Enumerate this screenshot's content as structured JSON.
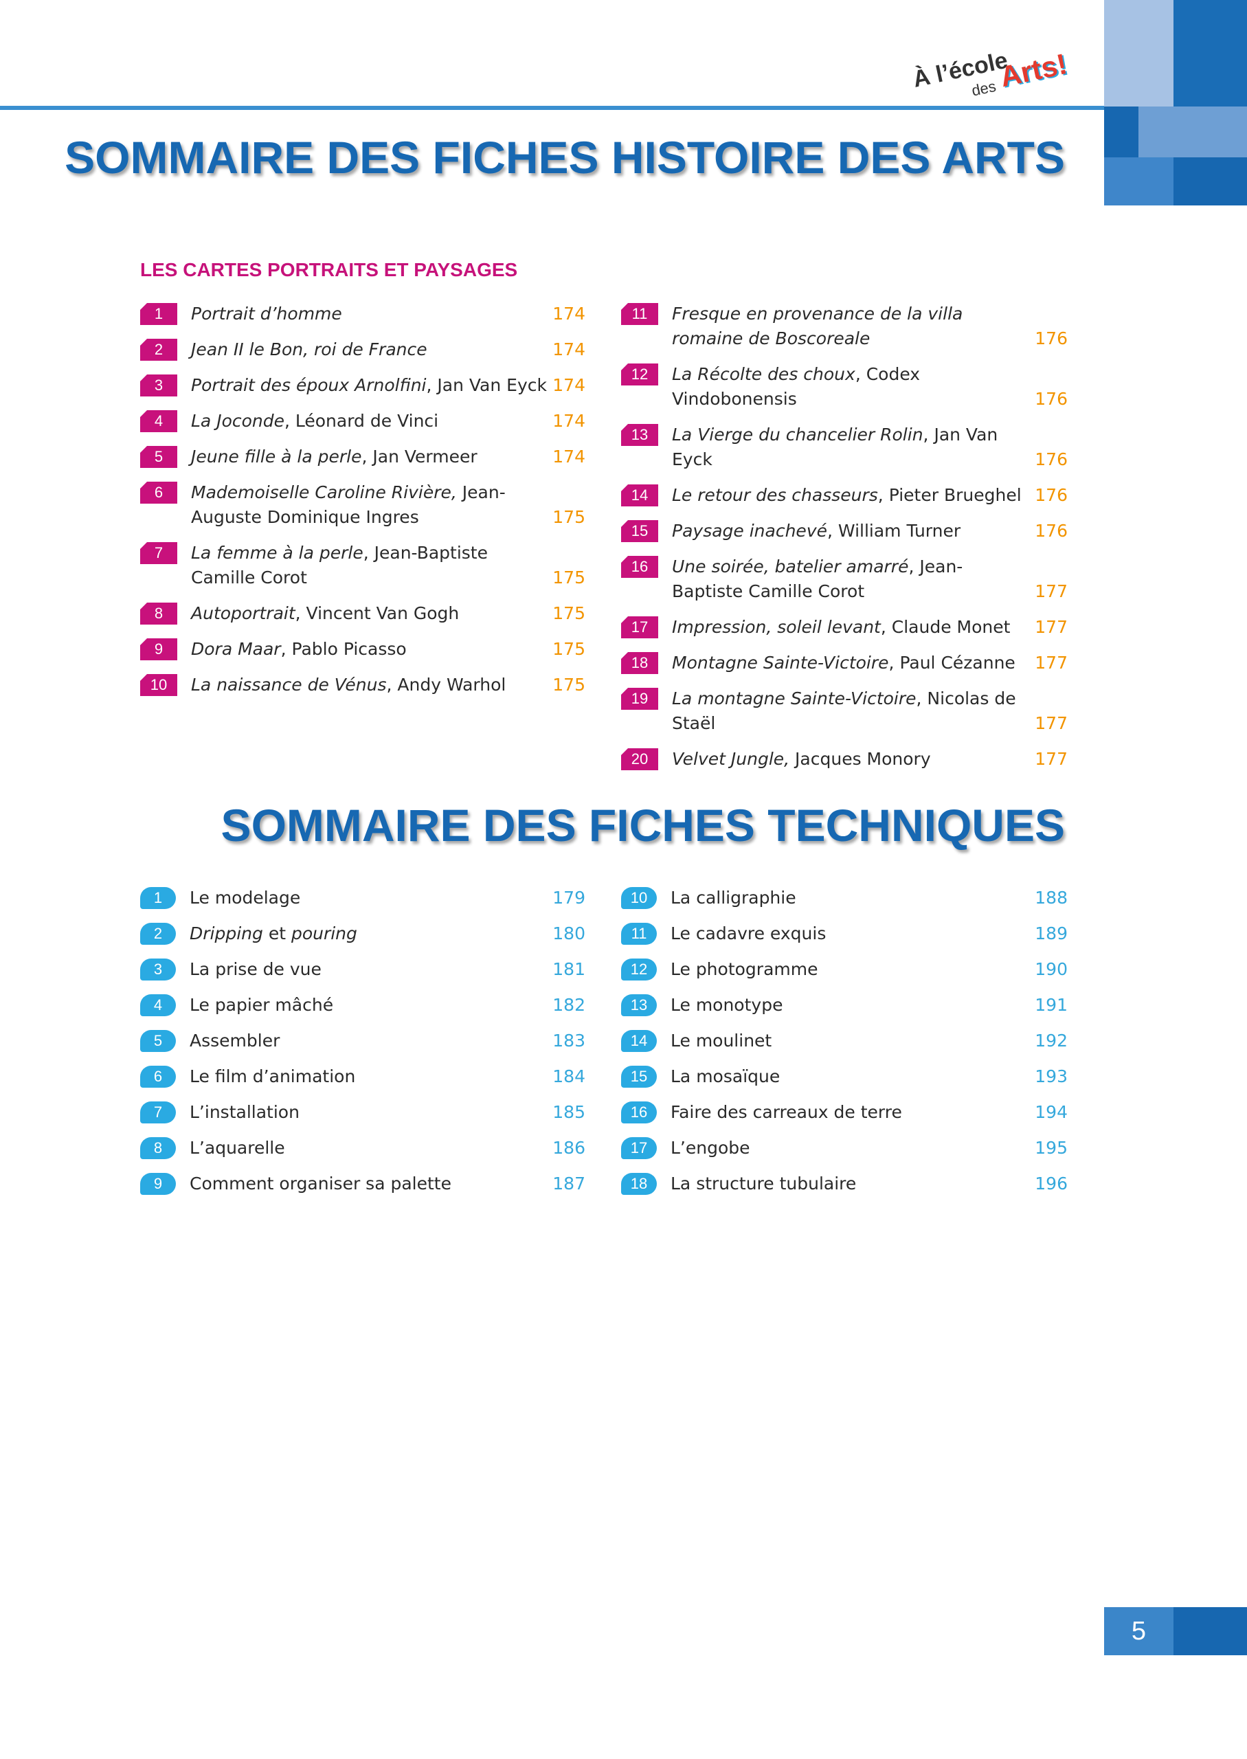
{
  "logo": {
    "line1": "À l’école",
    "line2": "des",
    "line3": "Arts!"
  },
  "sections": [
    {
      "title": "SOMMAIRE DES FICHES HISTOIRE DES ARTS",
      "subtitle": "LES CARTES PORTRAITS ET PAYSAGES",
      "columns": [
        [
          {
            "number": 1,
            "segments": [
              {
                "text": "Portrait d’homme",
                "italic": true
              }
            ],
            "page": 174
          },
          {
            "number": 2,
            "segments": [
              {
                "text": "Jean II le Bon, roi de France",
                "italic": true
              }
            ],
            "page": 174
          },
          {
            "number": 3,
            "segments": [
              {
                "text": "Portrait des époux Arnolfini",
                "italic": true
              },
              {
                "text": ", Jan Van Eyck",
                "italic": false
              }
            ],
            "page": 174
          },
          {
            "number": 4,
            "segments": [
              {
                "text": "La Joconde",
                "italic": true
              },
              {
                "text": ", Léonard de Vinci",
                "italic": false
              }
            ],
            "page": 174
          },
          {
            "number": 5,
            "segments": [
              {
                "text": "Jeune fille à la perle",
                "italic": true
              },
              {
                "text": ", Jan Vermeer",
                "italic": false
              }
            ],
            "page": 174
          },
          {
            "number": 6,
            "segments": [
              {
                "text": "Mademoiselle Caroline Rivière,",
                "italic": true
              },
              {
                "text": " Jean-Auguste Dominique Ingres",
                "italic": false
              }
            ],
            "page": 175
          },
          {
            "number": 7,
            "segments": [
              {
                "text": "La femme à la perle",
                "italic": true
              },
              {
                "text": ", Jean-Baptiste Camille Corot",
                "italic": false
              }
            ],
            "page": 175
          },
          {
            "number": 8,
            "segments": [
              {
                "text": "Autoportrait",
                "italic": true
              },
              {
                "text": ", Vincent Van Gogh",
                "italic": false
              }
            ],
            "page": 175
          },
          {
            "number": 9,
            "segments": [
              {
                "text": "Dora Maar",
                "italic": true
              },
              {
                "text": ", Pablo Picasso",
                "italic": false
              }
            ],
            "page": 175
          },
          {
            "number": 10,
            "segments": [
              {
                "text": "La naissance de Vénus",
                "italic": true
              },
              {
                "text": ", Andy Warhol",
                "italic": false
              }
            ],
            "page": 175
          }
        ],
        [
          {
            "number": 11,
            "segments": [
              {
                "text": "Fresque en provenance de la villa romaine de Boscoreale",
                "italic": true
              }
            ],
            "page": 176
          },
          {
            "number": 12,
            "segments": [
              {
                "text": "La Récolte des choux",
                "italic": true
              },
              {
                "text": ", Codex Vindobonensis",
                "italic": false
              }
            ],
            "page": 176
          },
          {
            "number": 13,
            "segments": [
              {
                "text": "La Vierge du chancelier Rolin",
                "italic": true
              },
              {
                "text": ", Jan Van Eyck",
                "italic": false
              }
            ],
            "page": 176
          },
          {
            "number": 14,
            "segments": [
              {
                "text": "Le retour des chasseurs",
                "italic": true
              },
              {
                "text": ", Pieter Brueghel",
                "italic": false
              }
            ],
            "page": 176
          },
          {
            "number": 15,
            "segments": [
              {
                "text": "Paysage inachevé",
                "italic": true
              },
              {
                "text": ", William Turner",
                "italic": false
              }
            ],
            "page": 176
          },
          {
            "number": 16,
            "segments": [
              {
                "text": "Une soirée, batelier amarré",
                "italic": true
              },
              {
                "text": ", Jean-Baptiste Camille Corot",
                "italic": false
              }
            ],
            "page": 177
          },
          {
            "number": 17,
            "segments": [
              {
                "text": "Impression, soleil levant",
                "italic": true
              },
              {
                "text": ", Claude Monet",
                "italic": false
              }
            ],
            "page": 177
          },
          {
            "number": 18,
            "segments": [
              {
                "text": "Montagne Sainte-Victoire",
                "italic": true
              },
              {
                "text": ", Paul Cézanne",
                "italic": false
              }
            ],
            "page": 177
          },
          {
            "number": 19,
            "segments": [
              {
                "text": "La montagne Sainte-Victoire",
                "italic": true
              },
              {
                "text": ", Nicolas de Staël",
                "italic": false
              }
            ],
            "page": 177
          },
          {
            "number": 20,
            "segments": [
              {
                "text": "Velvet Jungle,",
                "italic": true
              },
              {
                "text": " Jacques Monory",
                "italic": false
              }
            ],
            "page": 177
          }
        ]
      ]
    },
    {
      "title": "SOMMAIRE DES FICHES TECHNIQUES",
      "columns": [
        [
          {
            "number": 1,
            "segments": [
              {
                "text": "Le modelage",
                "italic": false
              }
            ],
            "page": 179
          },
          {
            "number": 2,
            "segments": [
              {
                "text": "Dripping",
                "italic": true
              },
              {
                "text": " et ",
                "italic": false
              },
              {
                "text": "pouring",
                "italic": true
              }
            ],
            "page": 180
          },
          {
            "number": 3,
            "segments": [
              {
                "text": "La prise de vue",
                "italic": false
              }
            ],
            "page": 181
          },
          {
            "number": 4,
            "segments": [
              {
                "text": "Le papier mâché",
                "italic": false
              }
            ],
            "page": 182
          },
          {
            "number": 5,
            "segments": [
              {
                "text": "Assembler",
                "italic": false
              }
            ],
            "page": 183
          },
          {
            "number": 6,
            "segments": [
              {
                "text": "Le film d’animation",
                "italic": false
              }
            ],
            "page": 184
          },
          {
            "number": 7,
            "segments": [
              {
                "text": "L’installation",
                "italic": false
              }
            ],
            "page": 185
          },
          {
            "number": 8,
            "segments": [
              {
                "text": "L’aquarelle",
                "italic": false
              }
            ],
            "page": 186
          },
          {
            "number": 9,
            "segments": [
              {
                "text": "Comment organiser sa palette",
                "italic": false
              }
            ],
            "page": 187
          }
        ],
        [
          {
            "number": 10,
            "segments": [
              {
                "text": "La calligraphie",
                "italic": false
              }
            ],
            "page": 188
          },
          {
            "number": 11,
            "segments": [
              {
                "text": "Le cadavre exquis",
                "italic": false
              }
            ],
            "page": 189
          },
          {
            "number": 12,
            "segments": [
              {
                "text": "Le photogramme",
                "italic": false
              }
            ],
            "page": 190
          },
          {
            "number": 13,
            "segments": [
              {
                "text": "Le monotype",
                "italic": false
              }
            ],
            "page": 191
          },
          {
            "number": 14,
            "segments": [
              {
                "text": "Le moulinet",
                "italic": false
              }
            ],
            "page": 192
          },
          {
            "number": 15,
            "segments": [
              {
                "text": "La mosaïque",
                "italic": false
              }
            ],
            "page": 193
          },
          {
            "number": 16,
            "segments": [
              {
                "text": "Faire des carreaux de terre",
                "italic": false
              }
            ],
            "page": 194
          },
          {
            "number": 17,
            "segments": [
              {
                "text": "L’engobe",
                "italic": false
              }
            ],
            "page": 195
          },
          {
            "number": 18,
            "segments": [
              {
                "text": "La structure tubulaire",
                "italic": false
              }
            ],
            "page": 196
          }
        ]
      ]
    }
  ],
  "page_number": 5
}
